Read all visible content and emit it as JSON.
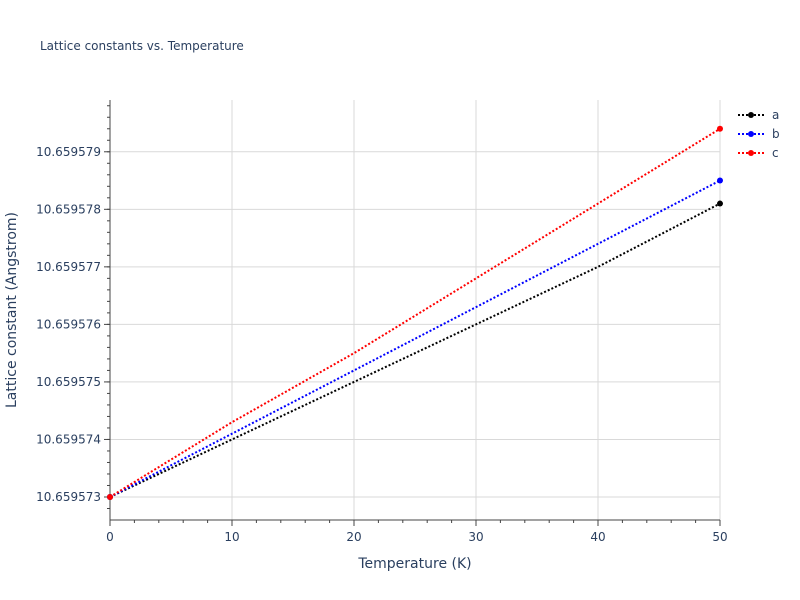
{
  "chart_data": {
    "type": "line",
    "title": "Lattice constants vs. Temperature",
    "xlabel": "Temperature (K)",
    "ylabel": "Lattice constant (Angstrom)",
    "x": [
      0,
      50
    ],
    "xlim": [
      0,
      50
    ],
    "ylim": [
      10.6595726,
      10.6595799
    ],
    "x_ticks": [
      0,
      10,
      20,
      30,
      40,
      50
    ],
    "x_tick_labels": [
      "0",
      "10",
      "20",
      "30",
      "40",
      "50"
    ],
    "y_ticks": [
      10.659573,
      10.659574,
      10.659575,
      10.659576,
      10.659577,
      10.659578,
      10.659579
    ],
    "y_tick_labels": [
      "10.659573",
      "10.659574",
      "10.659575",
      "10.659576",
      "10.659577",
      "10.659578",
      "10.659579"
    ],
    "grid": true,
    "legend_position": "top-right",
    "series": [
      {
        "name": "a",
        "color": "#000000",
        "x": [
          0,
          10,
          20,
          30,
          40,
          50
        ],
        "y": [
          10.659573,
          10.659574,
          10.659575,
          10.659576,
          10.659577,
          10.6595781
        ]
      },
      {
        "name": "b",
        "color": "#0000ff",
        "x": [
          0,
          10,
          20,
          30,
          40,
          50
        ],
        "y": [
          10.659573,
          10.6595741,
          10.6595752,
          10.6595763,
          10.6595774,
          10.6595785
        ]
      },
      {
        "name": "c",
        "color": "#ff0000",
        "x": [
          0,
          10,
          20,
          30,
          40,
          50
        ],
        "y": [
          10.659573,
          10.6595743,
          10.6595755,
          10.6595768,
          10.6595781,
          10.6595794
        ]
      }
    ]
  }
}
